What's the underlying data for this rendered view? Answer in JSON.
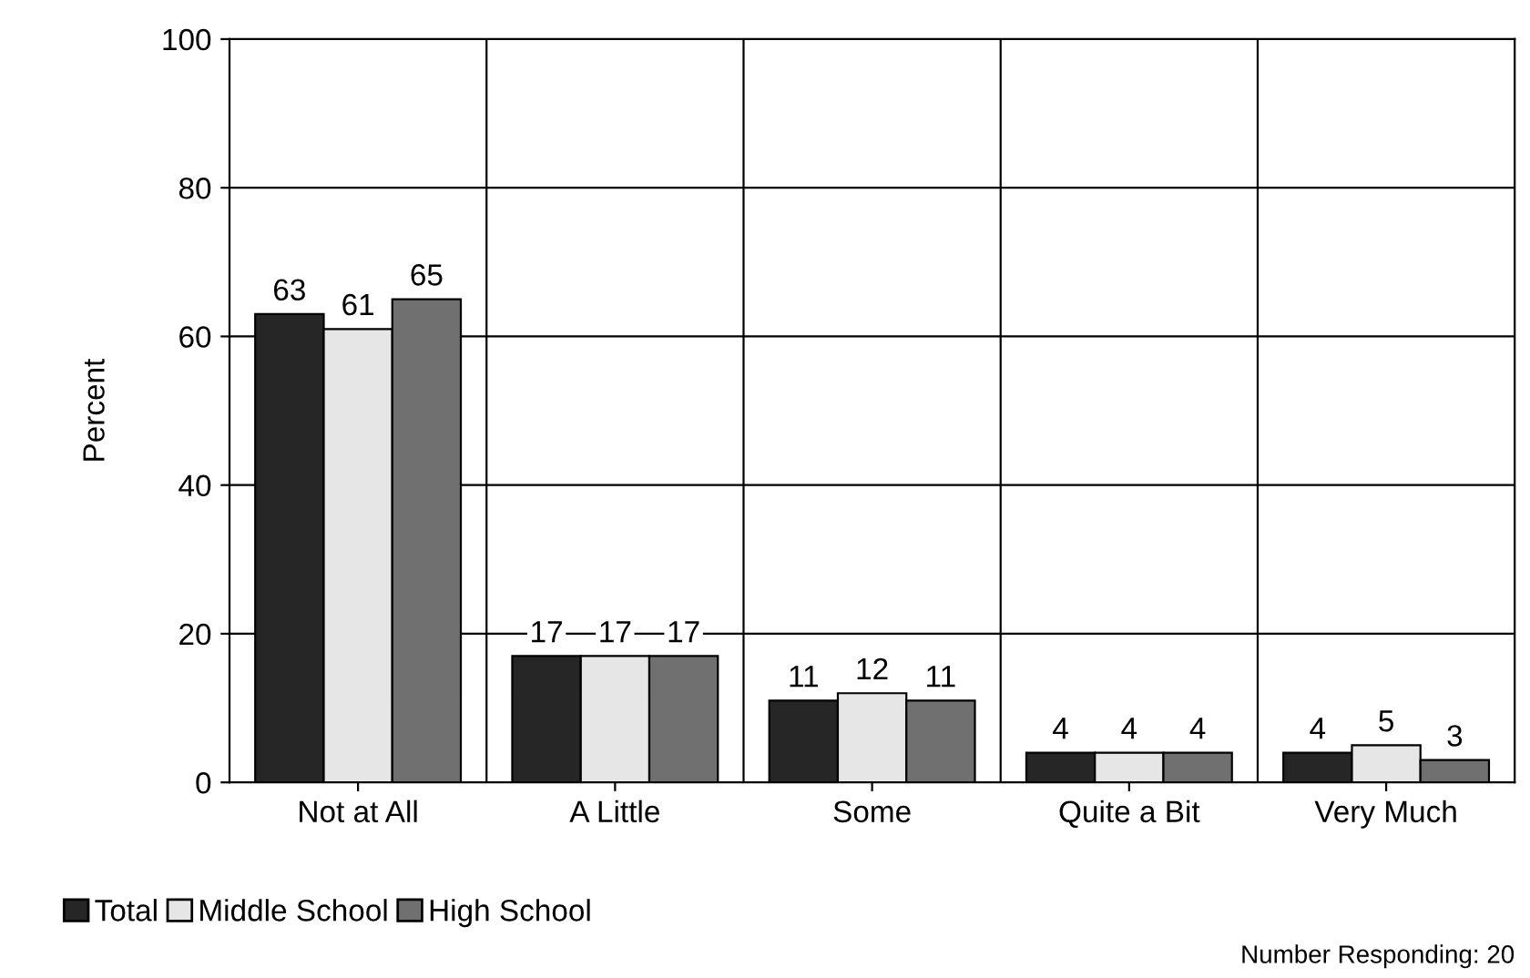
{
  "chart_data": {
    "type": "bar",
    "ylabel": "Percent",
    "categories": [
      "Not at All",
      "A Little",
      "Some",
      "Quite a Bit",
      "Very Much"
    ],
    "series": [
      {
        "name": "Total",
        "color": "#262626",
        "values": [
          63,
          17,
          11,
          4,
          4
        ]
      },
      {
        "name": "Middle School",
        "color": "#e6e6e6",
        "values": [
          61,
          17,
          12,
          4,
          5
        ]
      },
      {
        "name": "High School",
        "color": "#707070",
        "values": [
          65,
          17,
          11,
          4,
          3
        ]
      }
    ],
    "ylim": [
      0,
      100
    ],
    "yticks": [
      0,
      20,
      40,
      60,
      80,
      100
    ],
    "grid": true,
    "legend": "bottom left",
    "data_labels": true,
    "annotations": [
      "Number Responding: 20"
    ]
  }
}
